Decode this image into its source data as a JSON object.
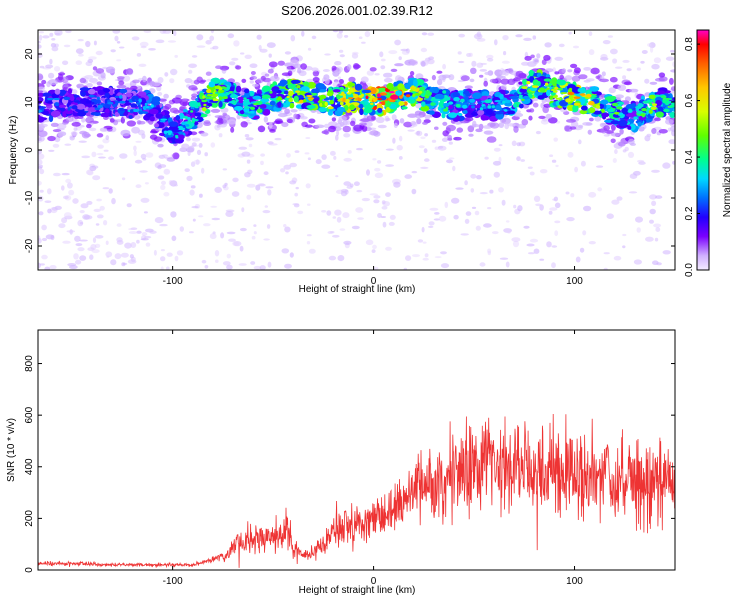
{
  "figure_title": "S206.2026.001.02.39.R12",
  "chart_data": [
    {
      "type": "heatmap",
      "title": "S206.2026.001.02.39.R12",
      "xlabel": "Height of straight line (km)",
      "ylabel": "Frequency (Hz)",
      "xlim": [
        -167,
        150
      ],
      "ylim": [
        -25,
        25
      ],
      "xticks": [
        -100,
        0,
        100
      ],
      "yticks": [
        -20,
        -10,
        0,
        10,
        20
      ],
      "colorbar": {
        "label": "Normalized spectral amplitude",
        "range": [
          0.0,
          0.85
        ],
        "ticks": [
          0.0,
          0.2,
          0.4,
          0.6,
          0.8
        ],
        "colors": [
          "#f0e4ff",
          "#c8a8ff",
          "#7a00ff",
          "#2200ff",
          "#0070ff",
          "#00d8ff",
          "#00ff90",
          "#60ff00",
          "#d8ff00",
          "#ffc800",
          "#ff6000",
          "#ff0000",
          "#ff00c8"
        ]
      },
      "ridge": {
        "x": [
          -165,
          -150,
          -130,
          -110,
          -100,
          -90,
          -80,
          -70,
          -60,
          -50,
          -40,
          -30,
          -20,
          -10,
          0,
          10,
          20,
          30,
          40,
          50,
          60,
          70,
          80,
          90,
          100,
          110,
          120,
          130,
          140,
          148
        ],
        "frequency": [
          9,
          10,
          10,
          9,
          3,
          7,
          12,
          11,
          9,
          11,
          12,
          11,
          10,
          11,
          10,
          11,
          12,
          10,
          9,
          10,
          9,
          10,
          14,
          12,
          11,
          10,
          8,
          7,
          10,
          10
        ],
        "amplitude": [
          0.25,
          0.22,
          0.25,
          0.28,
          0.3,
          0.35,
          0.5,
          0.4,
          0.35,
          0.45,
          0.55,
          0.5,
          0.45,
          0.6,
          0.65,
          0.75,
          0.55,
          0.4,
          0.35,
          0.3,
          0.3,
          0.35,
          0.5,
          0.45,
          0.6,
          0.5,
          0.4,
          0.35,
          0.45,
          0.4
        ]
      }
    },
    {
      "type": "line",
      "xlabel": "Height of straight line (km)",
      "ylabel": "SNR (10 * v/v)",
      "xlim": [
        -167,
        150
      ],
      "ylim": [
        0,
        930
      ],
      "xticks": [
        -100,
        0,
        100
      ],
      "yticks": [
        0,
        200,
        400,
        600,
        800
      ],
      "series_color": "#ee3333",
      "x": [
        -167,
        -150,
        -130,
        -110,
        -90,
        -80,
        -72,
        -70,
        -60,
        -50,
        -42,
        -40,
        -35,
        -30,
        -22,
        -20,
        -15,
        -10,
        -5,
        0,
        5,
        10,
        15,
        20,
        30,
        40,
        50,
        60,
        70,
        80,
        90,
        100,
        110,
        120,
        130,
        140,
        150
      ],
      "y_mean": [
        25,
        25,
        20,
        20,
        20,
        40,
        60,
        90,
        120,
        130,
        150,
        90,
        50,
        70,
        120,
        150,
        170,
        180,
        180,
        200,
        210,
        240,
        260,
        320,
        350,
        380,
        380,
        400,
        400,
        390,
        390,
        370,
        360,
        350,
        350,
        330,
        330
      ],
      "y_spread": [
        12,
        12,
        10,
        10,
        10,
        20,
        40,
        60,
        80,
        80,
        100,
        60,
        30,
        40,
        80,
        100,
        100,
        110,
        110,
        120,
        130,
        150,
        170,
        180,
        200,
        240,
        250,
        260,
        260,
        250,
        250,
        250,
        240,
        240,
        240,
        240,
        240
      ]
    }
  ]
}
